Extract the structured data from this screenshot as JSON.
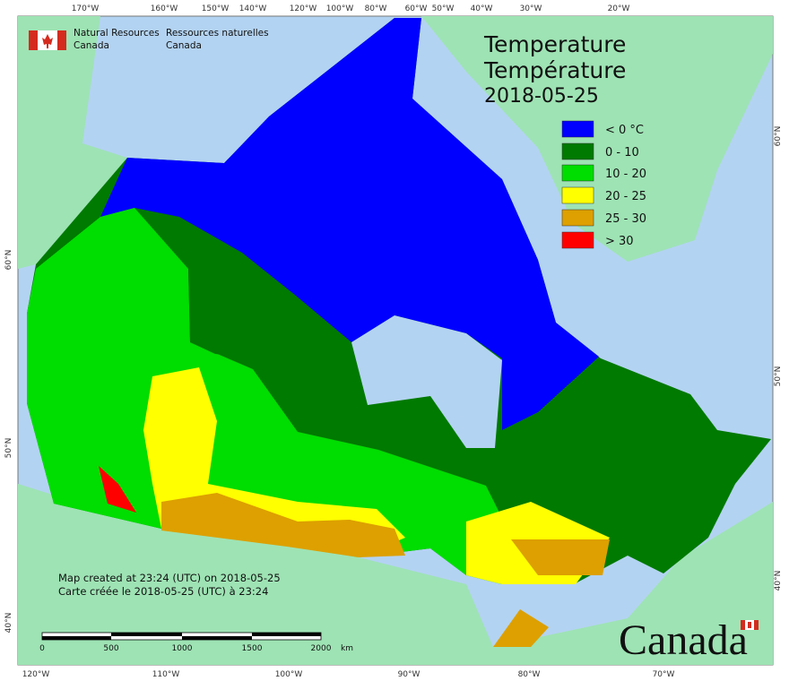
{
  "header": {
    "agency_en": "Natural Resources",
    "country_en": "Canada",
    "agency_fr": "Ressources naturelles",
    "country_fr": "Canada"
  },
  "title": {
    "en": "Temperature",
    "fr": "Température",
    "date": "2018-05-25"
  },
  "legend": [
    {
      "label": "< 0 °C",
      "color": "#0000ff"
    },
    {
      "label": "0 - 10",
      "color": "#007a00"
    },
    {
      "label": "10 - 20",
      "color": "#00dd00"
    },
    {
      "label": "20 - 25",
      "color": "#ffff00"
    },
    {
      "label": "25 - 30",
      "color": "#dda000"
    },
    {
      "label": "> 30",
      "color": "#ff0000"
    }
  ],
  "footer": {
    "created_en": "Map created at 23:24 (UTC) on 2018-05-25",
    "created_fr": "Carte créée le 2018-05-25 (UTC) à 23:24"
  },
  "scale_bar": {
    "labels": [
      "0",
      "500",
      "1000",
      "1500",
      "2000"
    ],
    "unit": "km"
  },
  "graticule": {
    "top": [
      "170°W",
      "160°W",
      "150°W",
      "140°W",
      "120°W",
      "100°W",
      "80°W",
      "60°W",
      "50°W",
      "40°W",
      "30°W",
      "20°W"
    ],
    "bottom": [
      "120°W",
      "110°W",
      "100°W",
      "90°W",
      "80°W",
      "70°W"
    ],
    "left": [
      "60°N",
      "50°N",
      "40°N"
    ],
    "right": [
      "60°N",
      "50°N",
      "40°N"
    ]
  },
  "wordmark": "Canada"
}
